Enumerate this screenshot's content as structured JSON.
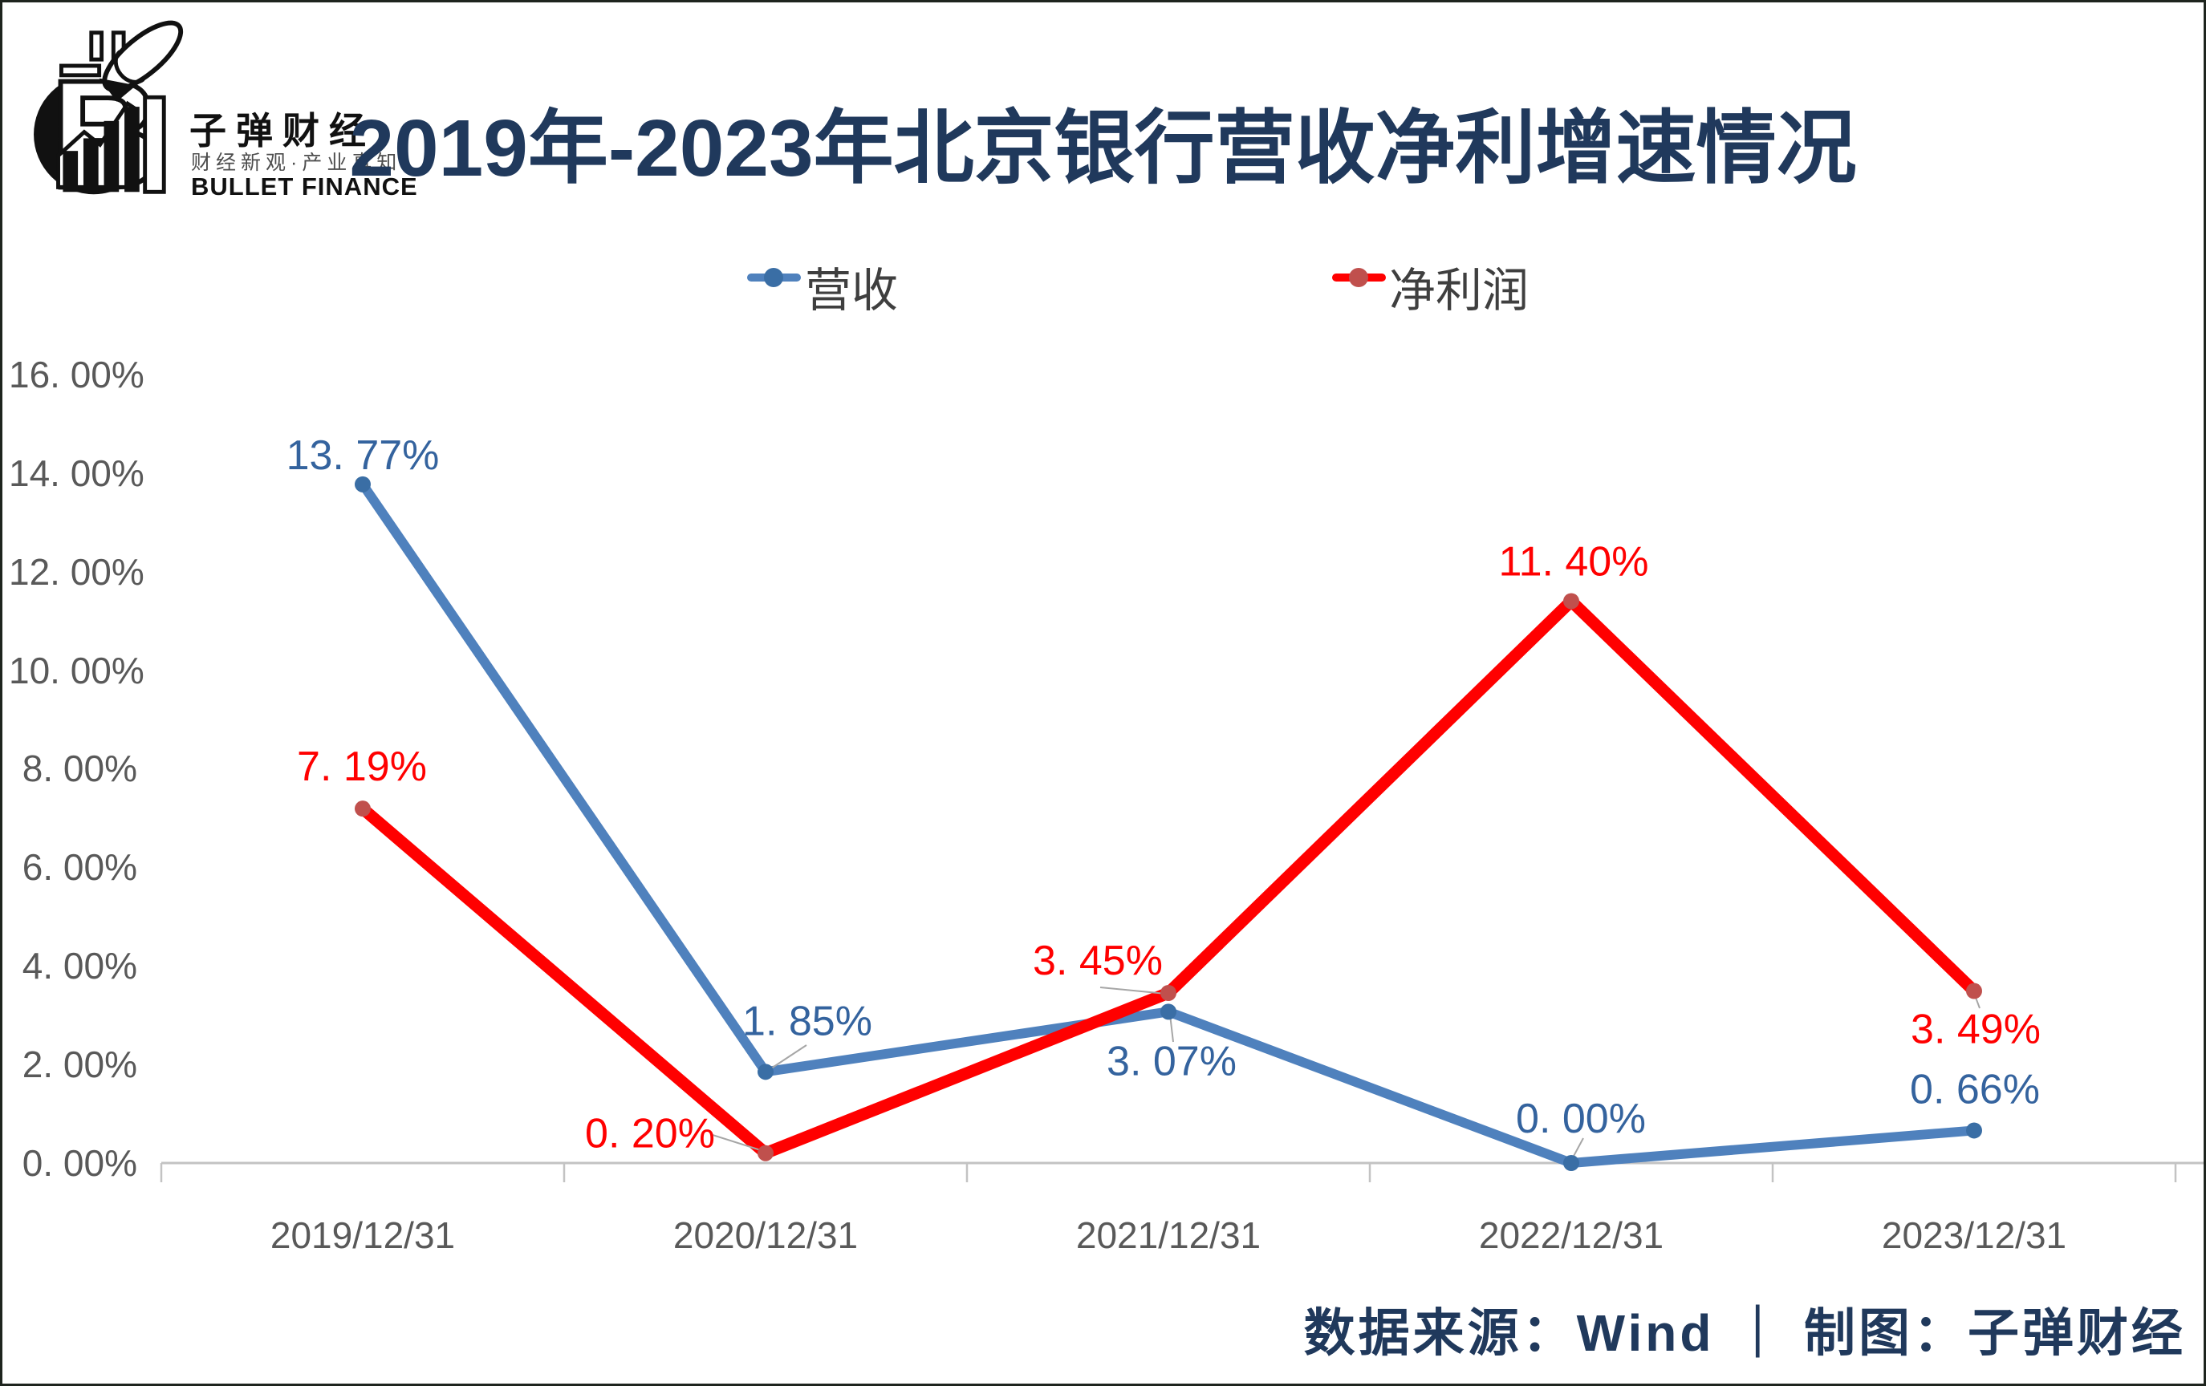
{
  "logo": {
    "name": "子弹财经",
    "tagline": "财经新观·产业真知",
    "name_en": "BULLET FINANCE",
    "mark_icon": "bullet-through-b-with-bar-chart"
  },
  "header": {
    "title": "2019年-2023年北京银行营收净利增速情况",
    "title_color": "#20395C"
  },
  "legend": {
    "text_color": "#3F3F3F",
    "items": [
      {
        "label": "营收",
        "line_color": "#4F81BD",
        "marker_color": "#3A6EA5"
      },
      {
        "label": "净利润",
        "line_color": "#FF0000",
        "marker_color": "#C0504D"
      }
    ]
  },
  "chart_data": {
    "type": "line",
    "title": "2019年-2023年北京银行营收净利增速情况",
    "categories": [
      "2019/12/31",
      "2020/12/31",
      "2021/12/31",
      "2022/12/31",
      "2023/12/31"
    ],
    "series": [
      {
        "name": "营收",
        "color": "#4F81BD",
        "marker_color": "#3A6EA5",
        "label_color": "#34639E",
        "values": [
          13.77,
          1.85,
          3.07,
          0.0,
          0.66
        ],
        "point_labels": [
          "13. 77%",
          "1. 85%",
          "3. 07%",
          "0. 00%",
          "0. 66%"
        ]
      },
      {
        "name": "净利润",
        "color": "#FF0000",
        "marker_color": "#C0504D",
        "label_color": "#FF0000",
        "values": [
          7.19,
          0.2,
          3.45,
          11.4,
          3.49
        ],
        "point_labels": [
          "7. 19%",
          "0. 20%",
          "3. 45%",
          "11. 40%",
          "3. 49%"
        ]
      }
    ],
    "yticks": [
      "0. 00%",
      "2. 00%",
      "4. 00%",
      "6. 00%",
      "8. 00%",
      "10. 00%",
      "12. 00%",
      "14. 00%",
      "16. 00%"
    ],
    "ytick_values": [
      0,
      2,
      4,
      6,
      8,
      10,
      12,
      14,
      16
    ],
    "ylim": [
      0,
      16
    ],
    "grid": false,
    "legend_position": "top",
    "axis_color": "#C3C3C3",
    "tick_label_color": "#595959",
    "leader_line_color": "#A6A6A6"
  },
  "footer": {
    "source_text": "数据来源：Wind ｜ 制图：子弹财经",
    "color": "#20395C"
  }
}
